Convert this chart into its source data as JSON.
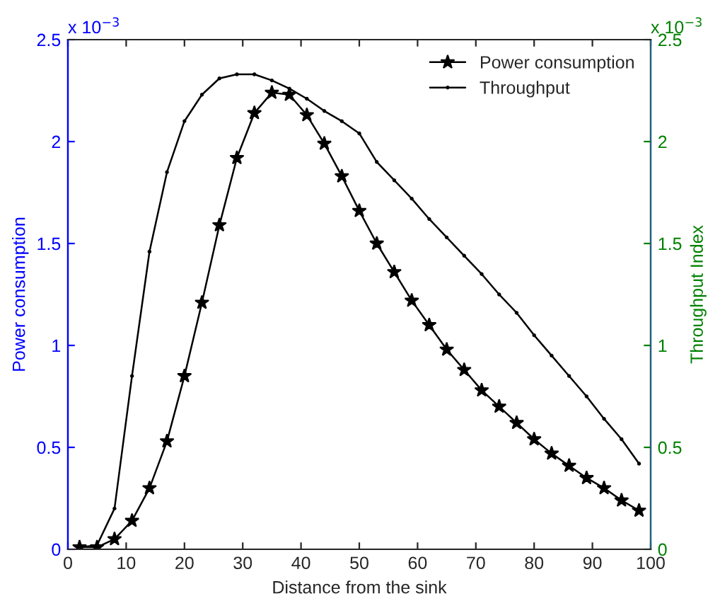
{
  "chart_data": {
    "type": "line",
    "xlabel": "Distance from the sink",
    "ylabel": "Power consumption",
    "y2label": "Throughput Index",
    "x": [
      2,
      5,
      8,
      11,
      14,
      17,
      20,
      23,
      26,
      29,
      32,
      35,
      38,
      41,
      44,
      47,
      50,
      53,
      56,
      59,
      62,
      65,
      68,
      71,
      74,
      77,
      80,
      83,
      86,
      89,
      92,
      95,
      98
    ],
    "series": [
      {
        "name": "Power consumption",
        "color": "#000000",
        "marker": "star",
        "values": [
          0.01,
          0.01,
          0.05,
          0.14,
          0.3,
          0.53,
          0.85,
          1.21,
          1.59,
          1.92,
          2.14,
          2.24,
          2.23,
          2.13,
          1.99,
          1.83,
          1.66,
          1.5,
          1.36,
          1.22,
          1.1,
          0.98,
          0.88,
          0.78,
          0.7,
          0.62,
          0.54,
          0.47,
          0.41,
          0.35,
          0.3,
          0.24,
          0.19
        ]
      },
      {
        "name": "Throughput",
        "color": "#000000",
        "marker": "circle",
        "axis": "y2",
        "values": [
          0.01,
          0.02,
          0.2,
          0.85,
          1.46,
          1.85,
          2.1,
          2.23,
          2.31,
          2.33,
          2.33,
          2.3,
          2.26,
          2.21,
          2.15,
          2.1,
          2.04,
          1.9,
          1.81,
          1.72,
          1.62,
          1.53,
          1.44,
          1.35,
          1.25,
          1.16,
          1.05,
          0.95,
          0.85,
          0.75,
          0.64,
          0.54,
          0.42
        ]
      }
    ],
    "xlim": [
      0,
      100
    ],
    "xticks": [
      0,
      10,
      20,
      30,
      40,
      50,
      60,
      70,
      80,
      90,
      100
    ],
    "ylim": [
      0,
      2.5
    ],
    "yticks": [
      0,
      0.5,
      1,
      1.5,
      2,
      2.5
    ],
    "y2lim": [
      0,
      2.5
    ],
    "y2ticks": [
      0,
      0.5,
      1,
      1.5,
      2,
      2.5
    ],
    "annotations": [
      "x 10$^{−3}$",
      "x 10$^{−3}$"
    ],
    "legend": "top right",
    "grid": false,
    "line_style": "solid"
  }
}
